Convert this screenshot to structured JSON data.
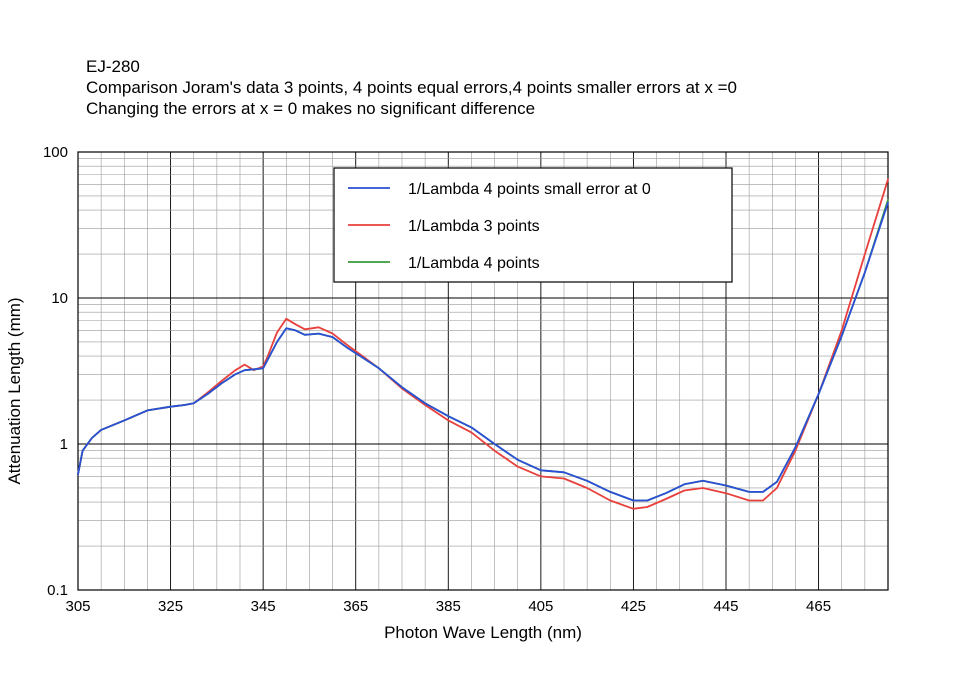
{
  "chart_data": {
    "type": "line",
    "title": "EJ-280",
    "subtitle_lines": [
      "Comparison Joram's data 3 points, 4 points equal errors,4 points smaller errors at x =0",
      "Changing the errors at x = 0 makes no significant difference"
    ],
    "xlabel": "Photon Wave Length (nm)",
    "ylabel": "Attenuation Length (mm)",
    "xlim": [
      305,
      480
    ],
    "ylim": [
      0.1,
      100
    ],
    "yscale": "log",
    "grid": true,
    "legend_position": "top-center",
    "x_ticks": [
      305,
      325,
      345,
      365,
      385,
      405,
      425,
      445,
      465
    ],
    "y_ticks": [
      0.1,
      1,
      10,
      100
    ],
    "y_tick_labels": [
      "0.1",
      "1",
      "10",
      "100"
    ],
    "series": [
      {
        "name": "1/Lambda 4 points small error at 0",
        "color": "#2b4fd6",
        "points": [
          [
            305,
            0.62
          ],
          [
            306,
            0.9
          ],
          [
            308,
            1.1
          ],
          [
            310,
            1.25
          ],
          [
            315,
            1.45
          ],
          [
            320,
            1.7
          ],
          [
            325,
            1.8
          ],
          [
            328,
            1.85
          ],
          [
            330,
            1.9
          ],
          [
            333,
            2.2
          ],
          [
            336,
            2.6
          ],
          [
            339,
            3.0
          ],
          [
            341,
            3.2
          ],
          [
            343,
            3.25
          ],
          [
            345,
            3.3
          ],
          [
            346,
            3.8
          ],
          [
            348,
            5.0
          ],
          [
            350,
            6.2
          ],
          [
            352,
            6.0
          ],
          [
            354,
            5.6
          ],
          [
            357,
            5.7
          ],
          [
            360,
            5.4
          ],
          [
            363,
            4.6
          ],
          [
            366,
            4.0
          ],
          [
            370,
            3.3
          ],
          [
            375,
            2.45
          ],
          [
            380,
            1.9
          ],
          [
            385,
            1.55
          ],
          [
            390,
            1.3
          ],
          [
            395,
            1.0
          ],
          [
            400,
            0.78
          ],
          [
            405,
            0.66
          ],
          [
            410,
            0.64
          ],
          [
            415,
            0.56
          ],
          [
            420,
            0.47
          ],
          [
            425,
            0.41
          ],
          [
            428,
            0.41
          ],
          [
            432,
            0.46
          ],
          [
            436,
            0.53
          ],
          [
            440,
            0.56
          ],
          [
            445,
            0.52
          ],
          [
            450,
            0.47
          ],
          [
            453,
            0.47
          ],
          [
            456,
            0.55
          ],
          [
            460,
            0.95
          ],
          [
            465,
            2.2
          ],
          [
            470,
            5.5
          ],
          [
            475,
            15
          ],
          [
            480,
            45
          ]
        ]
      },
      {
        "name": "1/Lambda 3 points",
        "color": "#e8403c",
        "points": [
          [
            305,
            0.62
          ],
          [
            306,
            0.9
          ],
          [
            308,
            1.1
          ],
          [
            310,
            1.25
          ],
          [
            315,
            1.45
          ],
          [
            320,
            1.7
          ],
          [
            325,
            1.8
          ],
          [
            328,
            1.85
          ],
          [
            330,
            1.9
          ],
          [
            333,
            2.25
          ],
          [
            336,
            2.7
          ],
          [
            339,
            3.2
          ],
          [
            341,
            3.5
          ],
          [
            343,
            3.2
          ],
          [
            345,
            3.4
          ],
          [
            346,
            4.0
          ],
          [
            348,
            5.8
          ],
          [
            350,
            7.2
          ],
          [
            352,
            6.6
          ],
          [
            354,
            6.1
          ],
          [
            357,
            6.3
          ],
          [
            360,
            5.7
          ],
          [
            363,
            4.8
          ],
          [
            366,
            4.1
          ],
          [
            370,
            3.3
          ],
          [
            375,
            2.4
          ],
          [
            380,
            1.85
          ],
          [
            385,
            1.45
          ],
          [
            390,
            1.2
          ],
          [
            395,
            0.9
          ],
          [
            400,
            0.7
          ],
          [
            405,
            0.6
          ],
          [
            410,
            0.58
          ],
          [
            415,
            0.5
          ],
          [
            420,
            0.41
          ],
          [
            425,
            0.36
          ],
          [
            428,
            0.37
          ],
          [
            432,
            0.42
          ],
          [
            436,
            0.48
          ],
          [
            440,
            0.5
          ],
          [
            445,
            0.46
          ],
          [
            450,
            0.41
          ],
          [
            453,
            0.41
          ],
          [
            456,
            0.5
          ],
          [
            460,
            0.9
          ],
          [
            465,
            2.2
          ],
          [
            470,
            6
          ],
          [
            475,
            20
          ],
          [
            480,
            65
          ]
        ]
      },
      {
        "name": "1/Lambda 4 points",
        "color": "#3a9a3a",
        "points": [
          [
            305,
            0.62
          ],
          [
            306,
            0.9
          ],
          [
            308,
            1.1
          ],
          [
            310,
            1.25
          ],
          [
            315,
            1.45
          ],
          [
            320,
            1.7
          ],
          [
            325,
            1.8
          ],
          [
            328,
            1.85
          ],
          [
            330,
            1.9
          ],
          [
            333,
            2.2
          ],
          [
            336,
            2.6
          ],
          [
            339,
            3.0
          ],
          [
            341,
            3.2
          ],
          [
            343,
            3.25
          ],
          [
            345,
            3.3
          ],
          [
            346,
            3.8
          ],
          [
            348,
            5.0
          ],
          [
            350,
            6.2
          ],
          [
            352,
            6.0
          ],
          [
            354,
            5.6
          ],
          [
            357,
            5.7
          ],
          [
            360,
            5.4
          ],
          [
            363,
            4.6
          ],
          [
            366,
            4.0
          ],
          [
            370,
            3.3
          ],
          [
            375,
            2.45
          ],
          [
            380,
            1.9
          ],
          [
            385,
            1.55
          ],
          [
            390,
            1.3
          ],
          [
            395,
            1.0
          ],
          [
            400,
            0.78
          ],
          [
            405,
            0.66
          ],
          [
            410,
            0.64
          ],
          [
            415,
            0.56
          ],
          [
            420,
            0.47
          ],
          [
            425,
            0.41
          ],
          [
            428,
            0.41
          ],
          [
            432,
            0.46
          ],
          [
            436,
            0.53
          ],
          [
            440,
            0.56
          ],
          [
            445,
            0.52
          ],
          [
            450,
            0.47
          ],
          [
            453,
            0.47
          ],
          [
            456,
            0.55
          ],
          [
            460,
            0.95
          ],
          [
            465,
            2.2
          ],
          [
            470,
            5.5
          ],
          [
            475,
            15
          ],
          [
            480,
            47
          ]
        ]
      }
    ]
  }
}
